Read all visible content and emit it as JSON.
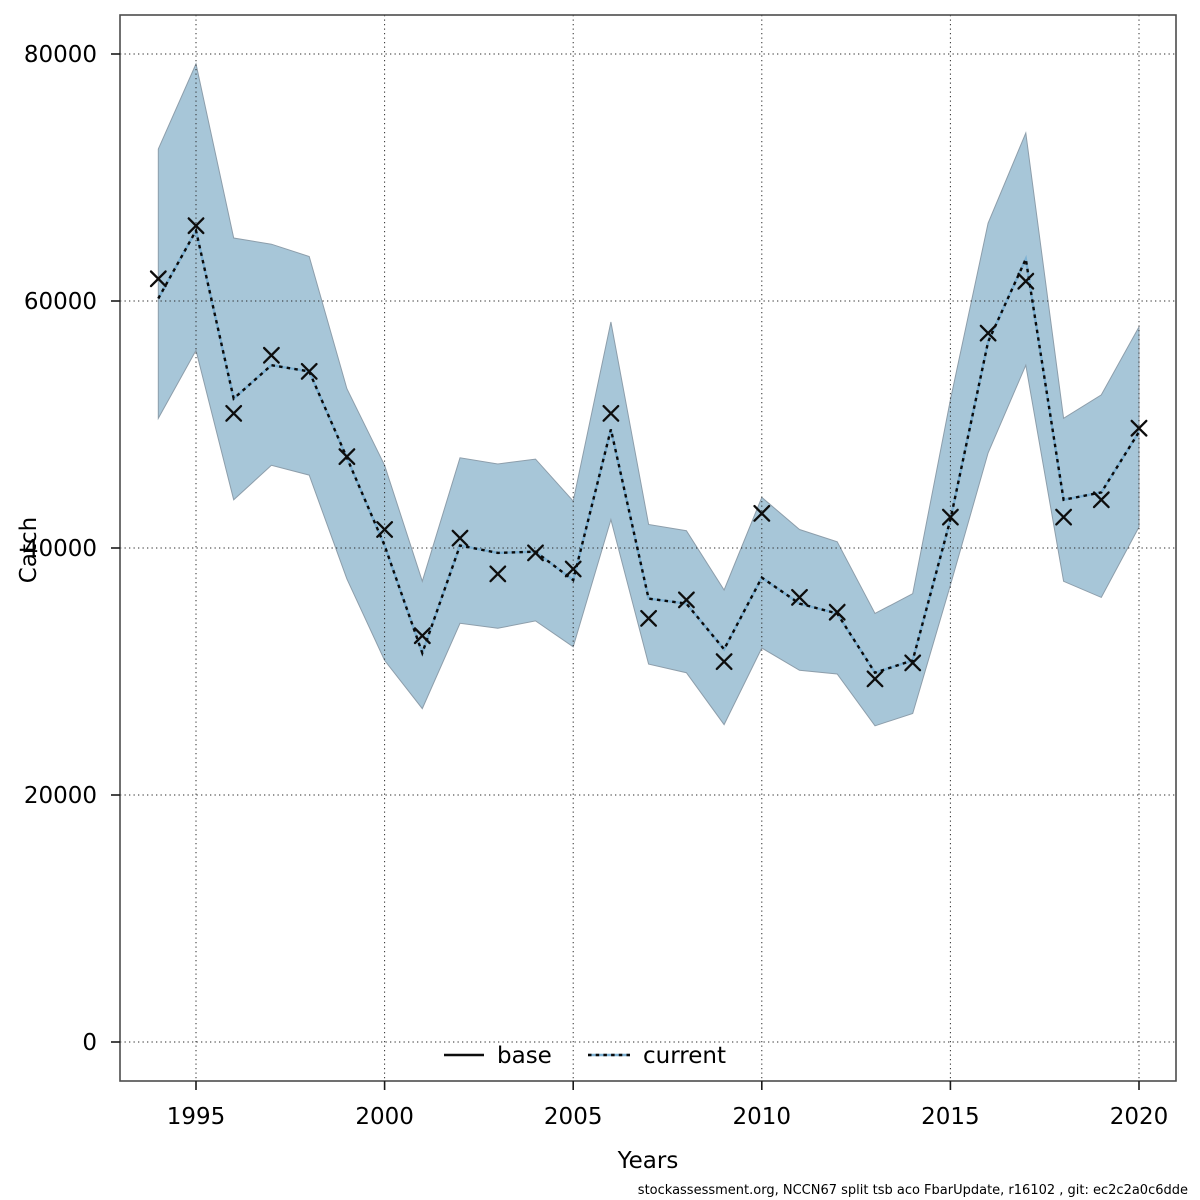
{
  "chart_data": {
    "type": "line",
    "title": "",
    "xlabel": "Years",
    "ylabel": "Catch",
    "grid": true,
    "xlim": [
      1993,
      2021
    ],
    "ylim": [
      -3200,
      83200
    ],
    "xticks": [
      1995,
      2000,
      2005,
      2010,
      2015,
      2020
    ],
    "yticks": [
      0,
      20000,
      40000,
      60000,
      80000
    ],
    "x": [
      1994,
      1995,
      1996,
      1997,
      1998,
      1999,
      2000,
      2001,
      2002,
      2003,
      2004,
      2005,
      2006,
      2007,
      2008,
      2009,
      2010,
      2011,
      2012,
      2013,
      2014,
      2015,
      2016,
      2017,
      2018,
      2019,
      2020
    ],
    "series": [
      {
        "name": "base",
        "style": "x-markers",
        "color": "#0d0d0d",
        "values": [
          61800,
          66100,
          50900,
          55600,
          54300,
          47400,
          41500,
          32900,
          40800,
          37900,
          39600,
          38300,
          50900,
          34300,
          35800,
          30800,
          42800,
          36000,
          34800,
          29400,
          30700,
          42500,
          57400,
          61600,
          42500,
          43900,
          49700
        ]
      },
      {
        "name": "current",
        "style": "dotted-line",
        "color": "#7eb2d4",
        "values": [
          60200,
          65700,
          52100,
          54800,
          54300,
          47300,
          40200,
          31500,
          40200,
          39600,
          39700,
          37400,
          49600,
          35900,
          35500,
          31800,
          37600,
          35500,
          34700,
          29900,
          30900,
          42300,
          56700,
          63400,
          43900,
          44500,
          49400
        ]
      }
    ],
    "band": {
      "series": "current",
      "fill": "#a7c6d8",
      "edge": "#8d9eab",
      "lo": [
        50500,
        56000,
        43900,
        46700,
        45900,
        37500,
        30900,
        27000,
        33900,
        33500,
        34100,
        32000,
        42300,
        30600,
        29900,
        25700,
        31900,
        30100,
        29800,
        25600,
        26600,
        37000,
        47700,
        54800,
        37300,
        36000,
        41700
      ],
      "hi": [
        72300,
        79200,
        65100,
        64600,
        63600,
        52900,
        46700,
        37300,
        47300,
        46800,
        47200,
        43800,
        58300,
        41900,
        41400,
        36600,
        44100,
        41500,
        40500,
        34700,
        36300,
        52000,
        66300,
        73600,
        50500,
        52400,
        57900
      ]
    },
    "legend": {
      "position": "bottom-center-inside",
      "entries": [
        {
          "label": "base",
          "line": "solid",
          "color": "#0d0d0d"
        },
        {
          "label": "current",
          "line": "dotted",
          "color": "#7eb2d4"
        }
      ]
    }
  },
  "footer": {
    "text": "stockassessment.org, NCCN67 split tsb aco FbarUpdate, r16102 , git: ec2c2a0c6dde"
  },
  "colors": {
    "band_fill": "#a7c6d8",
    "band_edge": "#8d9eab",
    "current_line_blue": "#7eb2d4",
    "dash_overlay": "#0a0a0a",
    "marker": "#0d0d0d",
    "grid": "#2b2b2b",
    "frame": "#4d4d4d"
  }
}
